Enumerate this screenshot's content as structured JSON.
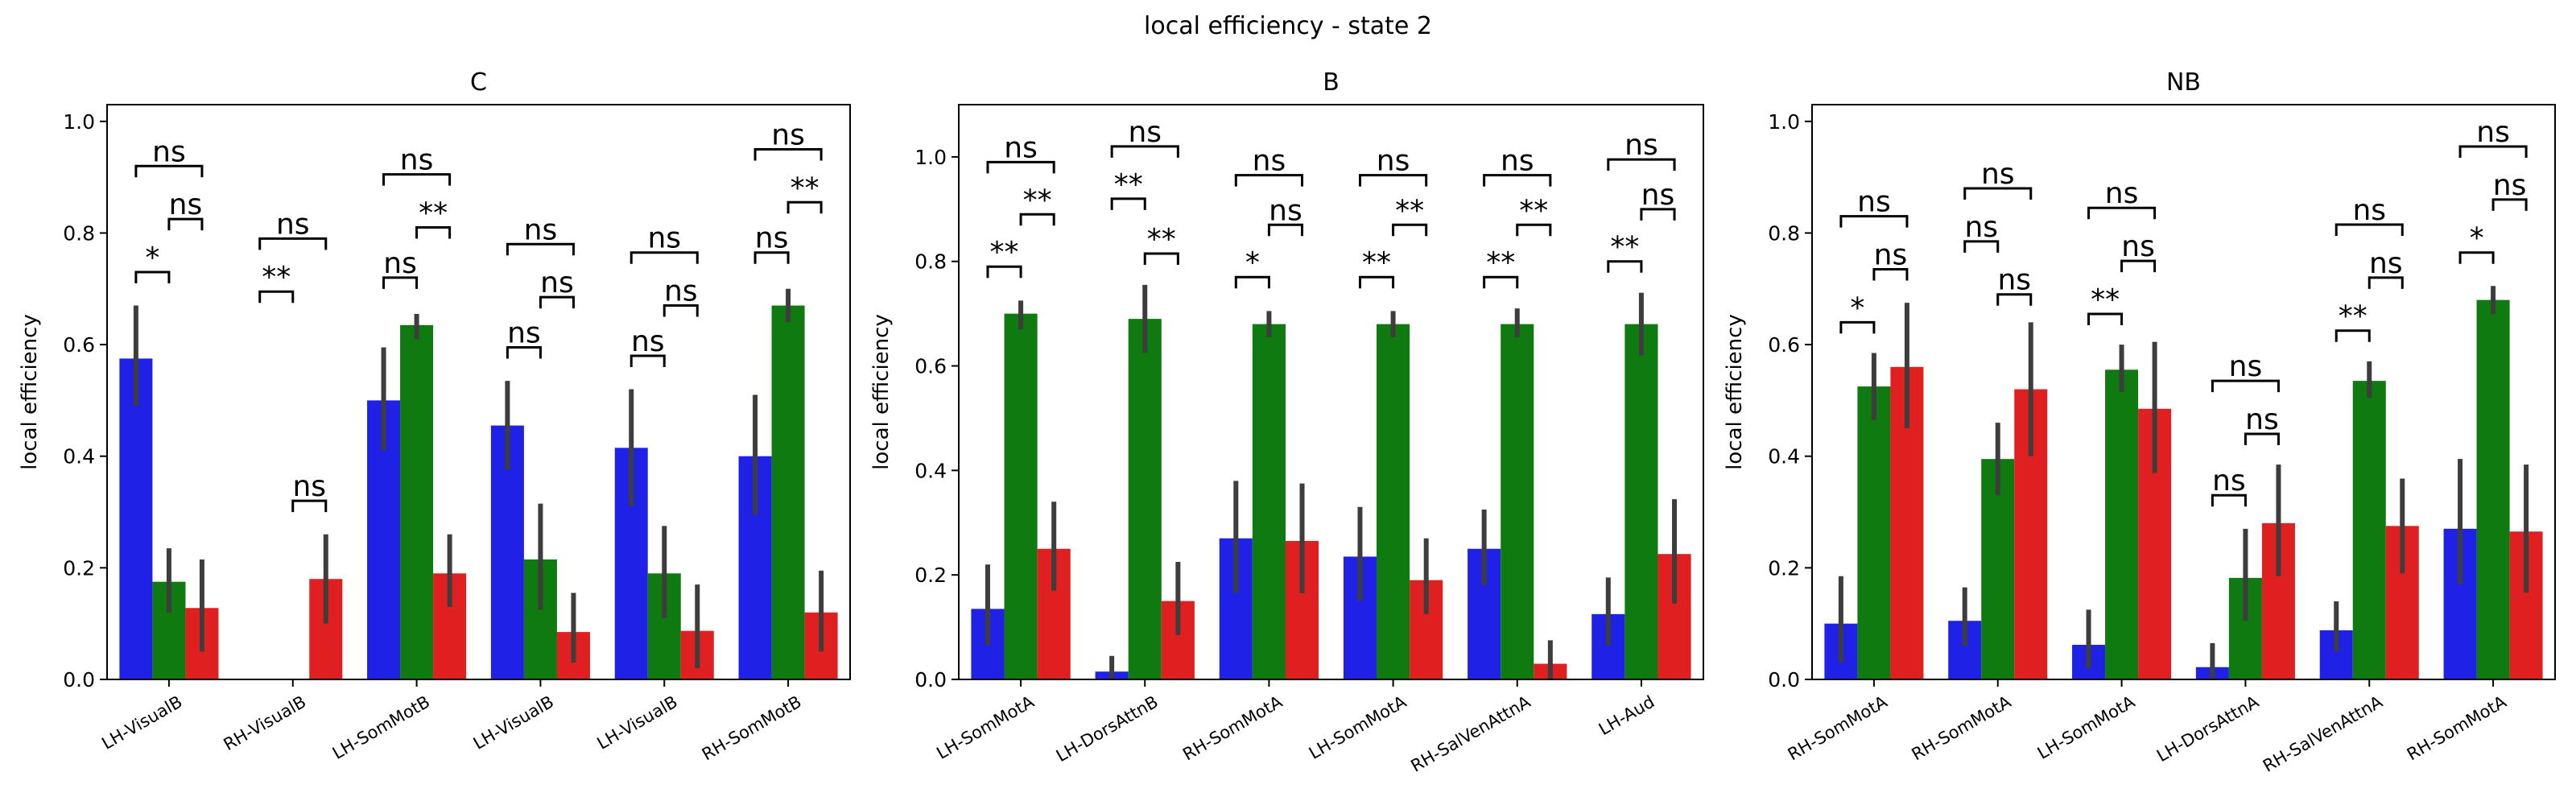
{
  "figure": {
    "title": "local efficiency - state 2"
  },
  "colors": {
    "blue": "#1f22e6",
    "green": "#0f7a0f",
    "red": "#e02020",
    "errorbar": "#3d3d3d",
    "bracket": "#000000"
  },
  "chart_data": [
    {
      "type": "bar",
      "title": "C",
      "ylabel": "local efficiency",
      "ylim": [
        0,
        1.03
      ],
      "yticks": [
        "0.0",
        "0.2",
        "0.4",
        "0.6",
        "0.8",
        "1.0"
      ],
      "categories": [
        "LH-VisualB",
        "RH-VisualB",
        "LH-SomMotB",
        "LH-VisualB",
        "LH-VisualB",
        "RH-SomMotB"
      ],
      "series": [
        {
          "values": [
            0.575,
            null,
            0.5,
            0.455,
            0.415,
            0.4
          ],
          "lo": [
            0.49,
            null,
            0.41,
            0.375,
            0.31,
            0.295
          ],
          "hi": [
            0.67,
            null,
            0.595,
            0.535,
            0.52,
            0.51
          ]
        },
        {
          "values": [
            0.175,
            null,
            0.635,
            0.215,
            0.19,
            0.67
          ],
          "lo": [
            0.12,
            null,
            0.61,
            0.125,
            0.11,
            0.64
          ],
          "hi": [
            0.235,
            null,
            0.655,
            0.315,
            0.275,
            0.7
          ]
        },
        {
          "values": [
            0.128,
            0.18,
            0.19,
            0.085,
            0.087,
            0.12
          ],
          "lo": [
            0.05,
            0.1,
            0.13,
            0.03,
            0.02,
            0.05
          ],
          "hi": [
            0.215,
            0.26,
            0.26,
            0.155,
            0.17,
            0.195
          ]
        }
      ],
      "annotations": [
        {
          "cat": 0,
          "pair": "01",
          "text": "*",
          "level": 0.73
        },
        {
          "cat": 0,
          "pair": "12",
          "text": "ns",
          "level": 0.825
        },
        {
          "cat": 0,
          "pair": "02",
          "text": "ns",
          "level": 0.92
        },
        {
          "cat": 1,
          "pair": "01",
          "text": "**",
          "level": 0.695
        },
        {
          "cat": 1,
          "pair": "12",
          "text": "ns",
          "level": 0.32
        },
        {
          "cat": 1,
          "pair": "02",
          "text": "ns",
          "level": 0.79
        },
        {
          "cat": 2,
          "pair": "01",
          "text": "ns",
          "level": 0.72
        },
        {
          "cat": 2,
          "pair": "12",
          "text": "**",
          "level": 0.81
        },
        {
          "cat": 2,
          "pair": "02",
          "text": "ns",
          "level": 0.905
        },
        {
          "cat": 3,
          "pair": "01",
          "text": "ns",
          "level": 0.595
        },
        {
          "cat": 3,
          "pair": "12",
          "text": "ns",
          "level": 0.685
        },
        {
          "cat": 3,
          "pair": "02",
          "text": "ns",
          "level": 0.78
        },
        {
          "cat": 4,
          "pair": "01",
          "text": "ns",
          "level": 0.58
        },
        {
          "cat": 4,
          "pair": "12",
          "text": "ns",
          "level": 0.67
        },
        {
          "cat": 4,
          "pair": "02",
          "text": "ns",
          "level": 0.765
        },
        {
          "cat": 5,
          "pair": "01",
          "text": "ns",
          "level": 0.765
        },
        {
          "cat": 5,
          "pair": "12",
          "text": "**",
          "level": 0.855
        },
        {
          "cat": 5,
          "pair": "02",
          "text": "ns",
          "level": 0.95
        }
      ]
    },
    {
      "type": "bar",
      "title": "B",
      "ylabel": "local efficiency",
      "ylim": [
        0,
        1.1
      ],
      "yticks": [
        "0.0",
        "0.2",
        "0.4",
        "0.6",
        "0.8",
        "1.0"
      ],
      "categories": [
        "LH-SomMotA",
        "LH-DorsAttnB",
        "RH-SomMotA",
        "LH-SomMotA",
        "RH-SalVenAttnA",
        "LH-Aud"
      ],
      "series": [
        {
          "values": [
            0.135,
            0.015,
            0.27,
            0.235,
            0.25,
            0.125
          ],
          "lo": [
            0.065,
            0.0,
            0.165,
            0.15,
            0.18,
            0.065
          ],
          "hi": [
            0.22,
            0.045,
            0.38,
            0.33,
            0.325,
            0.195
          ]
        },
        {
          "values": [
            0.7,
            0.69,
            0.68,
            0.68,
            0.68,
            0.68
          ],
          "lo": [
            0.67,
            0.625,
            0.655,
            0.655,
            0.655,
            0.62
          ],
          "hi": [
            0.725,
            0.755,
            0.705,
            0.705,
            0.71,
            0.74
          ]
        },
        {
          "values": [
            0.25,
            0.15,
            0.265,
            0.19,
            0.03,
            0.24
          ],
          "lo": [
            0.17,
            0.085,
            0.165,
            0.125,
            0.0,
            0.145
          ],
          "hi": [
            0.34,
            0.225,
            0.375,
            0.27,
            0.075,
            0.345
          ]
        }
      ],
      "annotations": [
        {
          "cat": 0,
          "pair": "01",
          "text": "**",
          "level": 0.79
        },
        {
          "cat": 0,
          "pair": "12",
          "text": "**",
          "level": 0.89
        },
        {
          "cat": 0,
          "pair": "02",
          "text": "ns",
          "level": 0.99
        },
        {
          "cat": 1,
          "pair": "01",
          "text": "**",
          "level": 0.92
        },
        {
          "cat": 1,
          "pair": "12",
          "text": "**",
          "level": 0.815
        },
        {
          "cat": 1,
          "pair": "02",
          "text": "ns",
          "level": 1.02
        },
        {
          "cat": 2,
          "pair": "01",
          "text": "*",
          "level": 0.77
        },
        {
          "cat": 2,
          "pair": "12",
          "text": "ns",
          "level": 0.87
        },
        {
          "cat": 2,
          "pair": "02",
          "text": "ns",
          "level": 0.965
        },
        {
          "cat": 3,
          "pair": "01",
          "text": "**",
          "level": 0.77
        },
        {
          "cat": 3,
          "pair": "12",
          "text": "**",
          "level": 0.87
        },
        {
          "cat": 3,
          "pair": "02",
          "text": "ns",
          "level": 0.965
        },
        {
          "cat": 4,
          "pair": "01",
          "text": "**",
          "level": 0.77
        },
        {
          "cat": 4,
          "pair": "12",
          "text": "**",
          "level": 0.87
        },
        {
          "cat": 4,
          "pair": "02",
          "text": "ns",
          "level": 0.965
        },
        {
          "cat": 5,
          "pair": "01",
          "text": "**",
          "level": 0.8
        },
        {
          "cat": 5,
          "pair": "12",
          "text": "ns",
          "level": 0.9
        },
        {
          "cat": 5,
          "pair": "02",
          "text": "ns",
          "level": 0.995
        }
      ]
    },
    {
      "type": "bar",
      "title": "NB",
      "ylabel": "local efficiency",
      "ylim": [
        0,
        1.03
      ],
      "yticks": [
        "0.0",
        "0.2",
        "0.4",
        "0.6",
        "0.8",
        "1.0"
      ],
      "categories": [
        "RH-SomMotA",
        "RH-SomMotA",
        "LH-SomMotA",
        "LH-DorsAttnA",
        "RH-SalVenAttnA",
        "RH-SomMotA"
      ],
      "series": [
        {
          "values": [
            0.1,
            0.105,
            0.062,
            0.022,
            0.088,
            0.27
          ],
          "lo": [
            0.03,
            0.06,
            0.02,
            0.0,
            0.05,
            0.17
          ],
          "hi": [
            0.185,
            0.165,
            0.125,
            0.065,
            0.14,
            0.395
          ]
        },
        {
          "values": [
            0.525,
            0.395,
            0.555,
            0.182,
            0.535,
            0.68
          ],
          "lo": [
            0.465,
            0.33,
            0.515,
            0.105,
            0.505,
            0.655
          ],
          "hi": [
            0.585,
            0.46,
            0.6,
            0.27,
            0.57,
            0.705
          ]
        },
        {
          "values": [
            0.56,
            0.52,
            0.485,
            0.28,
            0.275,
            0.265
          ],
          "lo": [
            0.45,
            0.4,
            0.37,
            0.185,
            0.19,
            0.155
          ],
          "hi": [
            0.675,
            0.64,
            0.605,
            0.385,
            0.36,
            0.385
          ]
        }
      ],
      "annotations": [
        {
          "cat": 0,
          "pair": "01",
          "text": "*",
          "level": 0.64
        },
        {
          "cat": 0,
          "pair": "12",
          "text": "ns",
          "level": 0.735
        },
        {
          "cat": 0,
          "pair": "02",
          "text": "ns",
          "level": 0.83
        },
        {
          "cat": 1,
          "pair": "01",
          "text": "ns",
          "level": 0.785
        },
        {
          "cat": 1,
          "pair": "12",
          "text": "ns",
          "level": 0.69
        },
        {
          "cat": 1,
          "pair": "02",
          "text": "ns",
          "level": 0.88
        },
        {
          "cat": 2,
          "pair": "01",
          "text": "**",
          "level": 0.655
        },
        {
          "cat": 2,
          "pair": "12",
          "text": "ns",
          "level": 0.75
        },
        {
          "cat": 2,
          "pair": "02",
          "text": "ns",
          "level": 0.845
        },
        {
          "cat": 3,
          "pair": "01",
          "text": "ns",
          "level": 0.33
        },
        {
          "cat": 3,
          "pair": "12",
          "text": "ns",
          "level": 0.44
        },
        {
          "cat": 3,
          "pair": "02",
          "text": "ns",
          "level": 0.535
        },
        {
          "cat": 4,
          "pair": "01",
          "text": "**",
          "level": 0.625
        },
        {
          "cat": 4,
          "pair": "12",
          "text": "ns",
          "level": 0.72
        },
        {
          "cat": 4,
          "pair": "02",
          "text": "ns",
          "level": 0.815
        },
        {
          "cat": 5,
          "pair": "01",
          "text": "*",
          "level": 0.765
        },
        {
          "cat": 5,
          "pair": "12",
          "text": "ns",
          "level": 0.86
        },
        {
          "cat": 5,
          "pair": "02",
          "text": "ns",
          "level": 0.955
        }
      ]
    }
  ]
}
